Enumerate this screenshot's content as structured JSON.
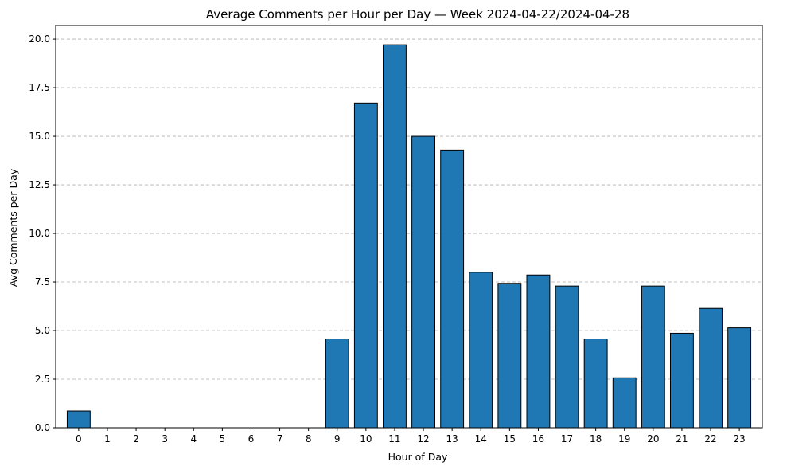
{
  "chart_data": {
    "type": "bar",
    "title": "Average Comments per Hour per Day — Week 2024-04-22/2024-04-28",
    "xlabel": "Hour of Day",
    "ylabel": "Avg Comments per Day",
    "categories": [
      "0",
      "1",
      "2",
      "3",
      "4",
      "5",
      "6",
      "7",
      "8",
      "9",
      "10",
      "11",
      "12",
      "13",
      "14",
      "15",
      "16",
      "17",
      "18",
      "19",
      "20",
      "21",
      "22",
      "23"
    ],
    "values": [
      0.86,
      0,
      0,
      0,
      0,
      0,
      0,
      0,
      0,
      4.57,
      16.71,
      19.71,
      15.0,
      14.29,
      8.0,
      7.43,
      7.86,
      7.29,
      4.57,
      2.57,
      7.29,
      4.86,
      6.14,
      5.14
    ],
    "ylim": [
      0,
      20.7
    ],
    "yticks": [
      "0.0",
      "2.5",
      "5.0",
      "7.5",
      "10.0",
      "12.5",
      "15.0",
      "17.5",
      "20.0"
    ],
    "grid": "y-dashed",
    "legend": "none",
    "bar_color": "#1f77b4",
    "edge_color": "#000000"
  }
}
